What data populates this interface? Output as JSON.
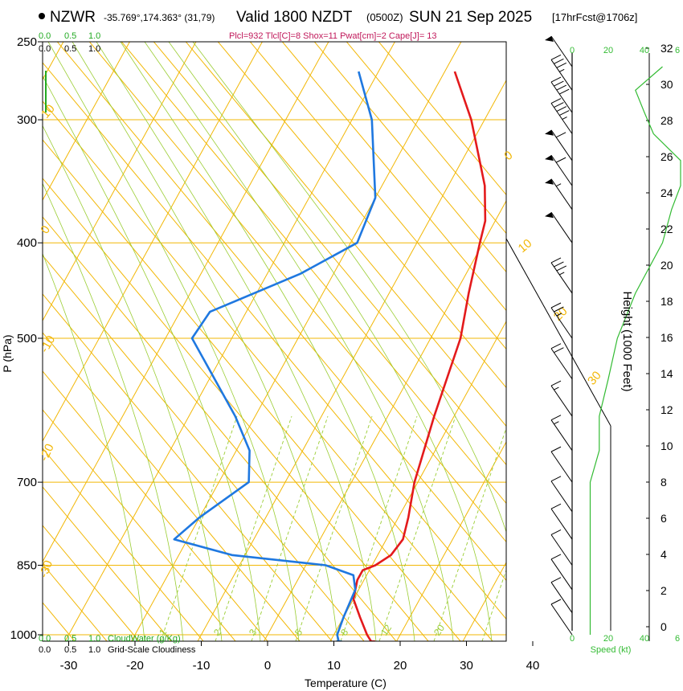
{
  "header": {
    "station": "NZWR",
    "coords": "-35.769°,174.363° (31,79)",
    "valid": "Valid 1800 NZDT",
    "utc": "(0500Z)",
    "date": "SUN 21 Sep 2025",
    "forecast": "[17hrFcst@1706z]",
    "indices": "Plcl=932 Tlcl[C]=8 Shox=11 Pwat[cm]=2 Cape[J]= 13"
  },
  "colors": {
    "temperature": "#e31a1c",
    "dewpoint": "#1f78e0",
    "isotherm": "#f2b705",
    "dry_adiabat": "#f2b705",
    "moist_adiabat": "#9acd32",
    "mixing_ratio": "#9acd32",
    "cloud_axis": "#22aa22",
    "wind_speed": "#33bb33",
    "parcel_marker": "#ff0000",
    "dew_marker": "#1f78e0"
  },
  "chart_data": {
    "type": "skew-t",
    "title": "NZWR Valid 1800 NZDT (0500Z) SUN 21 Sep 2025",
    "xlabel": "Temperature (C)",
    "ylabel": "P (hPa)",
    "right_label": "Height (1000 Feet)",
    "x_ticks": [
      "-30",
      "-20",
      "-10",
      "0",
      "10",
      "20",
      "30",
      "40"
    ],
    "x_tick_values": [
      -30,
      -20,
      -10,
      0,
      10,
      20,
      30,
      40
    ],
    "p_ticks": [
      "250",
      "300",
      "400",
      "500",
      "700",
      "850",
      "1000"
    ],
    "p_tick_values": [
      250,
      300,
      400,
      500,
      700,
      850,
      1000
    ],
    "height_ticks": [
      "0",
      "2",
      "4",
      "6",
      "8",
      "10",
      "12",
      "14",
      "16",
      "18",
      "20",
      "22",
      "24",
      "26",
      "28",
      "30",
      "32"
    ],
    "height_tick_values": [
      0,
      2,
      4,
      6,
      8,
      10,
      12,
      14,
      16,
      18,
      20,
      22,
      24,
      26,
      28,
      30,
      32
    ],
    "ylim_hpa": [
      1050,
      250
    ],
    "cloud_axis_top": [
      "0.0",
      "0.5",
      "1.0"
    ],
    "cloud_axis_top2": [
      "0.0",
      "0.5",
      "1.0"
    ],
    "cloud_axis_bottom": [
      "0.0",
      "0.5",
      "1.0"
    ],
    "cloud_axis_bottom2": [
      "0.0",
      "0.5",
      "1.0"
    ],
    "cloudwater_label": "CloudWater (g/Kg)",
    "cloudiness_label": "Grid-Scale Cloudiness",
    "speed_label": "Speed (kt)",
    "speed_ticks_top": [
      "0",
      "20",
      "40",
      "6"
    ],
    "speed_ticks_bottom": [
      "0",
      "20",
      "40",
      "6"
    ],
    "dry_adiabat_labels": [
      "10",
      "0",
      "-10",
      "-20",
      "-30",
      "0",
      "10",
      "20",
      "30"
    ],
    "mixing_ratio_labels": [
      "1",
      "2",
      "3",
      "5",
      "8",
      "12",
      "20"
    ],
    "temperature_profile": [
      {
        "p": 1020,
        "t": 16.5
      },
      {
        "p": 1000,
        "t": 15.0
      },
      {
        "p": 960,
        "t": 12.5
      },
      {
        "p": 920,
        "t": 10.0
      },
      {
        "p": 880,
        "t": 9.0
      },
      {
        "p": 860,
        "t": 9.0
      },
      {
        "p": 850,
        "t": 10.5
      },
      {
        "p": 830,
        "t": 12.0
      },
      {
        "p": 800,
        "t": 12.5
      },
      {
        "p": 760,
        "t": 11.5
      },
      {
        "p": 700,
        "t": 9.5
      },
      {
        "p": 600,
        "t": 7.0
      },
      {
        "p": 500,
        "t": 4.5
      },
      {
        "p": 450,
        "t": 2.0
      },
      {
        "p": 400,
        "t": -0.5
      },
      {
        "p": 380,
        "t": -1.5
      },
      {
        "p": 350,
        "t": -4.5
      },
      {
        "p": 300,
        "t": -12.0
      },
      {
        "p": 268,
        "t": -18.5
      }
    ],
    "dewpoint_profile": [
      {
        "p": 1020,
        "t": 11.5
      },
      {
        "p": 1000,
        "t": 10.5
      },
      {
        "p": 960,
        "t": 10.0
      },
      {
        "p": 900,
        "t": 9.5
      },
      {
        "p": 870,
        "t": 8.0
      },
      {
        "p": 850,
        "t": 3.0
      },
      {
        "p": 830,
        "t": -12.0
      },
      {
        "p": 800,
        "t": -22.0
      },
      {
        "p": 760,
        "t": -20.0
      },
      {
        "p": 700,
        "t": -15.5
      },
      {
        "p": 650,
        "t": -18.0
      },
      {
        "p": 600,
        "t": -23.0
      },
      {
        "p": 500,
        "t": -36.0
      },
      {
        "p": 470,
        "t": -35.5
      },
      {
        "p": 430,
        "t": -25.0
      },
      {
        "p": 400,
        "t": -19.0
      },
      {
        "p": 360,
        "t": -20.0
      },
      {
        "p": 300,
        "t": -27.0
      },
      {
        "p": 268,
        "t": -33.0
      }
    ],
    "surface_markers": {
      "temperature": 16.5,
      "dewpoint": 11.5,
      "p": 1020
    },
    "wind_barbs": [
      {
        "p": 1000,
        "speed_kt": 10
      },
      {
        "p": 950,
        "speed_kt": 10
      },
      {
        "p": 900,
        "speed_kt": 10
      },
      {
        "p": 850,
        "speed_kt": 10
      },
      {
        "p": 800,
        "speed_kt": 10
      },
      {
        "p": 750,
        "speed_kt": 10
      },
      {
        "p": 700,
        "speed_kt": 10
      },
      {
        "p": 650,
        "speed_kt": 15
      },
      {
        "p": 600,
        "speed_kt": 15
      },
      {
        "p": 550,
        "speed_kt": 20
      },
      {
        "p": 500,
        "speed_kt": 25
      },
      {
        "p": 450,
        "speed_kt": 35
      },
      {
        "p": 400,
        "speed_kt": 50
      },
      {
        "p": 370,
        "speed_kt": 55
      },
      {
        "p": 350,
        "speed_kt": 60
      },
      {
        "p": 330,
        "speed_kt": 60
      },
      {
        "p": 310,
        "speed_kt": 45
      },
      {
        "p": 295,
        "speed_kt": 40
      },
      {
        "p": 280,
        "speed_kt": 35
      },
      {
        "p": 265,
        "speed_kt": 50
      }
    ]
  }
}
